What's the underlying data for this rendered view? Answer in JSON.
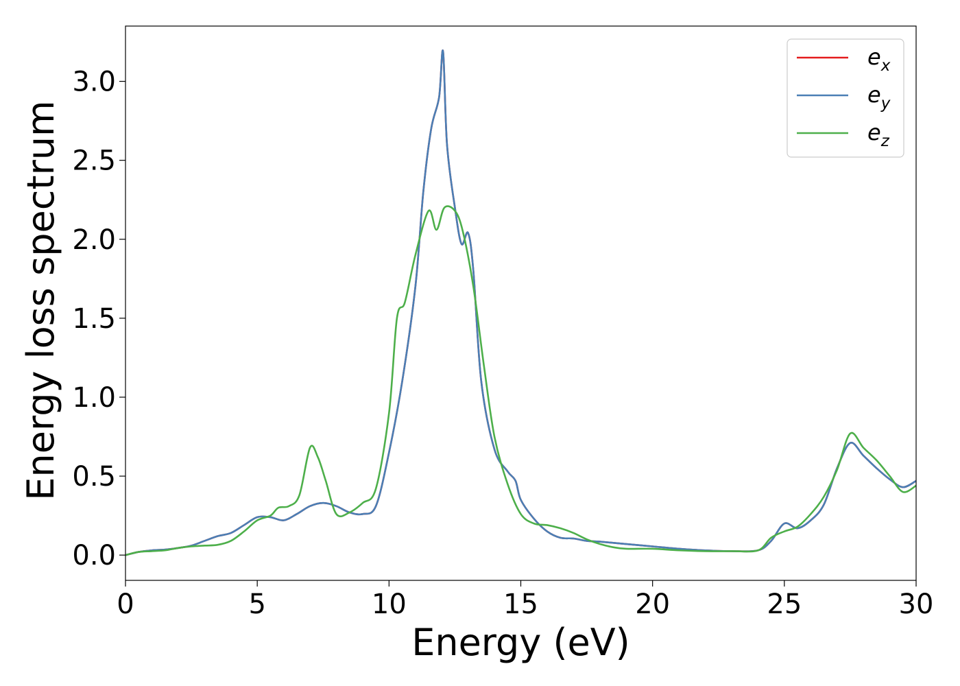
{
  "chart_data": {
    "type": "line",
    "title": "",
    "xlabel": "Energy (eV)",
    "ylabel": "Energy loss spectrum",
    "xlim": [
      0,
      30
    ],
    "ylim": [
      -0.16,
      3.35
    ],
    "xticks": [
      0,
      5,
      10,
      15,
      20,
      25,
      30
    ],
    "yticks": [
      0.0,
      0.5,
      1.0,
      1.5,
      2.0,
      2.5,
      3.0
    ],
    "xtick_labels": [
      "0",
      "5",
      "10",
      "15",
      "20",
      "25",
      "30"
    ],
    "ytick_labels": [
      "0.0",
      "0.5",
      "1.0",
      "1.5",
      "2.0",
      "2.5",
      "3.0"
    ],
    "grid": false,
    "legend_position": "top-right",
    "series": [
      {
        "name": "e",
        "subscript": "x",
        "color": "#e41a1c",
        "x": [
          0,
          0.5,
          1.0,
          1.5,
          2.0,
          2.5,
          3.0,
          3.5,
          4.0,
          4.5,
          5.0,
          5.5,
          6.0,
          6.5,
          7.0,
          7.5,
          8.0,
          8.5,
          9.0,
          9.5,
          10.0,
          10.5,
          11.0,
          11.3,
          11.6,
          11.9,
          12.05,
          12.2,
          12.5,
          12.75,
          13.0,
          13.2,
          13.5,
          14.0,
          14.5,
          14.8,
          15.0,
          15.5,
          16.0,
          16.5,
          17.0,
          17.5,
          18.0,
          19.0,
          20.0,
          21.0,
          22.0,
          23.0,
          24.0,
          24.5,
          25.0,
          25.5,
          26.0,
          26.5,
          27.0,
          27.5,
          28.0,
          28.5,
          29.0,
          29.5,
          30.0
        ],
        "y": [
          0.0,
          0.02,
          0.03,
          0.035,
          0.045,
          0.06,
          0.09,
          0.12,
          0.14,
          0.19,
          0.24,
          0.24,
          0.22,
          0.26,
          0.31,
          0.33,
          0.31,
          0.27,
          0.26,
          0.31,
          0.65,
          1.1,
          1.7,
          2.3,
          2.7,
          2.9,
          3.19,
          2.6,
          2.2,
          1.97,
          2.04,
          1.8,
          1.1,
          0.67,
          0.53,
          0.47,
          0.35,
          0.23,
          0.15,
          0.11,
          0.105,
          0.09,
          0.085,
          0.07,
          0.055,
          0.04,
          0.03,
          0.025,
          0.03,
          0.09,
          0.2,
          0.17,
          0.22,
          0.32,
          0.55,
          0.71,
          0.63,
          0.55,
          0.48,
          0.43,
          0.47
        ]
      },
      {
        "name": "e",
        "subscript": "y",
        "color": "#4a7fb5",
        "x": [
          0,
          0.5,
          1.0,
          1.5,
          2.0,
          2.5,
          3.0,
          3.5,
          4.0,
          4.5,
          5.0,
          5.5,
          6.0,
          6.5,
          7.0,
          7.5,
          8.0,
          8.5,
          9.0,
          9.5,
          10.0,
          10.5,
          11.0,
          11.3,
          11.6,
          11.9,
          12.05,
          12.2,
          12.5,
          12.75,
          13.0,
          13.2,
          13.5,
          14.0,
          14.5,
          14.8,
          15.0,
          15.5,
          16.0,
          16.5,
          17.0,
          17.5,
          18.0,
          19.0,
          20.0,
          21.0,
          22.0,
          23.0,
          24.0,
          24.5,
          25.0,
          25.5,
          26.0,
          26.5,
          27.0,
          27.5,
          28.0,
          28.5,
          29.0,
          29.5,
          30.0
        ],
        "y": [
          0.0,
          0.02,
          0.03,
          0.035,
          0.045,
          0.06,
          0.09,
          0.12,
          0.14,
          0.19,
          0.24,
          0.24,
          0.22,
          0.26,
          0.31,
          0.33,
          0.31,
          0.27,
          0.26,
          0.31,
          0.65,
          1.1,
          1.7,
          2.3,
          2.7,
          2.9,
          3.19,
          2.6,
          2.2,
          1.97,
          2.04,
          1.8,
          1.1,
          0.67,
          0.53,
          0.47,
          0.35,
          0.23,
          0.15,
          0.11,
          0.105,
          0.09,
          0.085,
          0.07,
          0.055,
          0.04,
          0.03,
          0.025,
          0.03,
          0.09,
          0.2,
          0.17,
          0.22,
          0.32,
          0.55,
          0.71,
          0.63,
          0.55,
          0.48,
          0.43,
          0.47
        ]
      },
      {
        "name": "e",
        "subscript": "z",
        "color": "#4daf4a",
        "x": [
          0,
          0.5,
          1.0,
          1.5,
          2.0,
          2.5,
          3.0,
          3.5,
          4.0,
          4.5,
          5.0,
          5.5,
          5.8,
          6.2,
          6.6,
          7.0,
          7.3,
          7.6,
          8.0,
          8.5,
          9.0,
          9.5,
          10.0,
          10.3,
          10.6,
          11.0,
          11.5,
          11.8,
          12.1,
          12.5,
          12.8,
          13.2,
          13.6,
          14.0,
          14.5,
          15.0,
          15.5,
          16.0,
          16.5,
          17.0,
          17.5,
          18.0,
          18.5,
          19.0,
          20.0,
          21.0,
          22.0,
          23.0,
          24.0,
          24.5,
          25.0,
          25.5,
          26.0,
          26.5,
          27.0,
          27.5,
          28.0,
          28.5,
          29.0,
          29.5,
          30.0
        ],
        "y": [
          0.0,
          0.02,
          0.025,
          0.03,
          0.045,
          0.055,
          0.06,
          0.065,
          0.09,
          0.15,
          0.22,
          0.25,
          0.3,
          0.31,
          0.38,
          0.68,
          0.62,
          0.47,
          0.26,
          0.27,
          0.33,
          0.42,
          0.9,
          1.5,
          1.6,
          1.9,
          2.18,
          2.06,
          2.2,
          2.18,
          2.05,
          1.7,
          1.2,
          0.75,
          0.45,
          0.26,
          0.2,
          0.19,
          0.17,
          0.14,
          0.1,
          0.07,
          0.05,
          0.04,
          0.04,
          0.03,
          0.025,
          0.025,
          0.03,
          0.11,
          0.15,
          0.18,
          0.26,
          0.37,
          0.54,
          0.77,
          0.68,
          0.6,
          0.5,
          0.4,
          0.44
        ]
      }
    ]
  }
}
